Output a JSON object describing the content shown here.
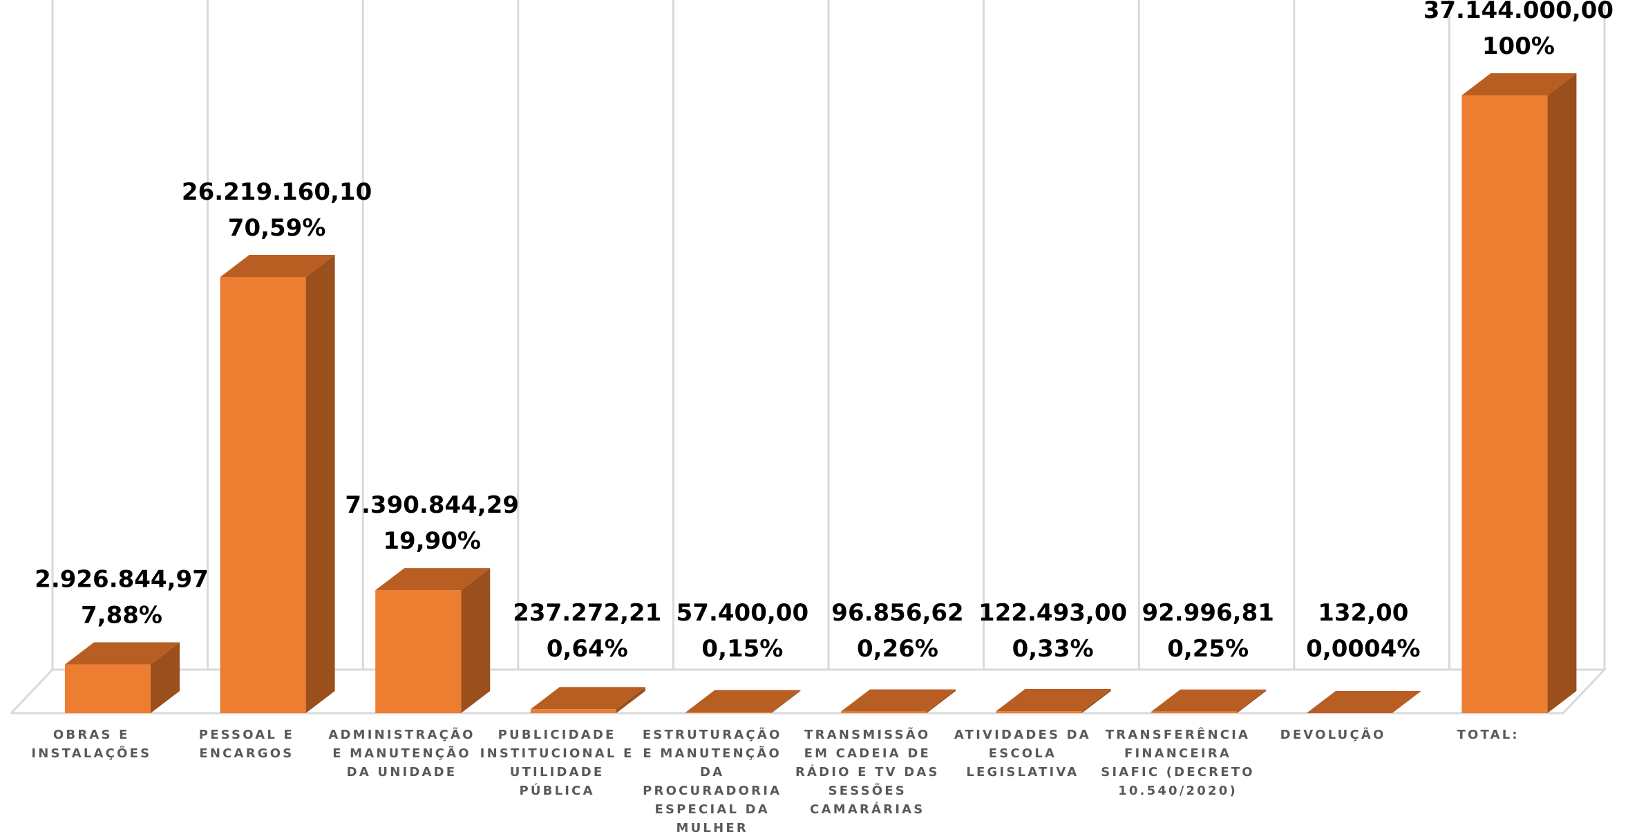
{
  "chart_data": {
    "type": "bar",
    "style": "3d-column",
    "grid": true,
    "legend": "none",
    "ylim": [
      0,
      37144000
    ],
    "colors": {
      "front": "#ED7D31",
      "side": "#9A4F1D",
      "top": "#B85E22",
      "grid": "#D9D9D9"
    },
    "categories": [
      [
        "OBRAS E",
        "INSTALAÇÕES"
      ],
      [
        "PESSOAL E",
        "ENCARGOS"
      ],
      [
        "ADMINISTRAÇÃO",
        "E MANUTENÇÃO",
        "DA UNIDADE"
      ],
      [
        "PUBLICIDADE",
        "INSTITUCIONAL E",
        "UTILIDADE",
        "PÚBLICA"
      ],
      [
        "ESTRUTURAÇÃO",
        "E MANUTENÇÃO",
        "DA",
        "PROCURADORIA",
        "ESPECIAL DA",
        "MULHER"
      ],
      [
        "TRANSMISSÃO",
        "EM CADEIA DE",
        "RÁDIO E TV DAS",
        "SESSÕES",
        "CAMARÁRIAS"
      ],
      [
        "ATIVIDADES DA",
        "ESCOLA",
        "LEGISLATIVA"
      ],
      [
        "TRANSFERÊNCIA",
        "FINANCEIRA",
        "SIAFIC (DECRETO",
        "10.540/2020)"
      ],
      [
        "DEVOLUÇÃO"
      ],
      [
        "TOTAL:"
      ]
    ],
    "values": [
      2926844.97,
      26219160.1,
      7390844.29,
      237272.21,
      57400.0,
      96856.62,
      122493.0,
      92996.81,
      132.0,
      37144000.0
    ],
    "value_labels": [
      "2.926.844,97",
      "26.219.160,10",
      "7.390.844,29",
      "237.272,21",
      "57.400,00",
      "96.856,62",
      "122.493,00",
      "92.996,81",
      "132,00",
      "37.144.000,00"
    ],
    "percent_labels": [
      "7,88%",
      "70,59%",
      "19,90%",
      "0,64%",
      "0,15%",
      "0,26%",
      "0,33%",
      "0,25%",
      "0,0004%",
      "100%"
    ]
  }
}
